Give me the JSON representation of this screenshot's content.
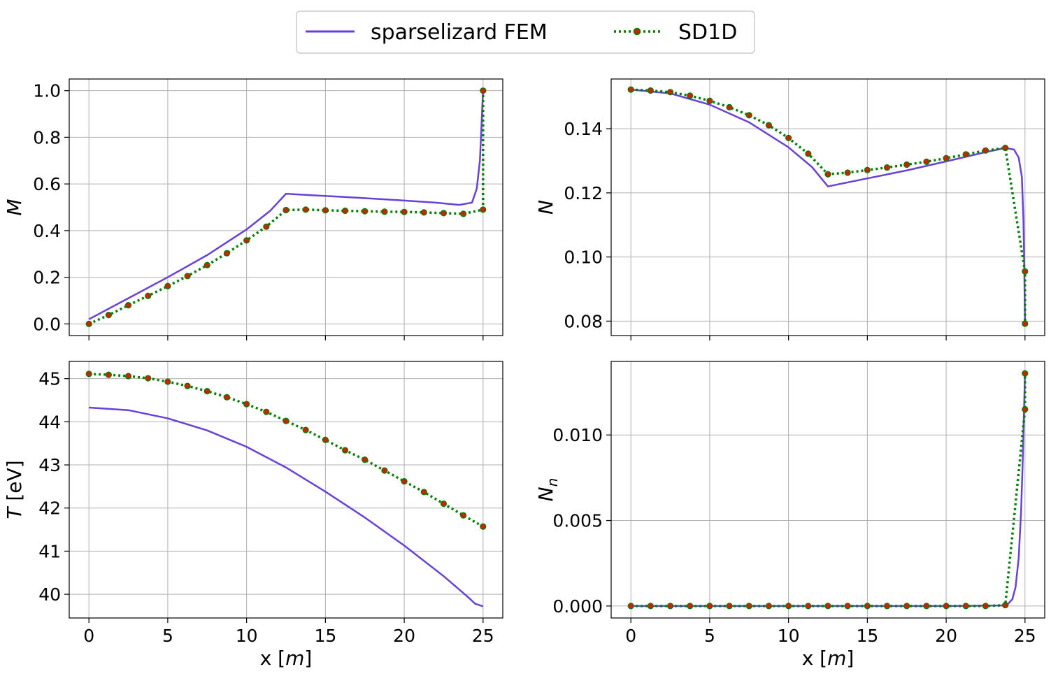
{
  "legend": {
    "entries": [
      {
        "label": "sparselizard FEM",
        "color": "#6741d9",
        "style": "solid"
      },
      {
        "label": "SD1D",
        "color": "#008000",
        "marker_color": "#cc2200",
        "style": "dotted-markers"
      }
    ],
    "placement": "top-center"
  },
  "chart_data": [
    {
      "type": "line",
      "ylabel": "M",
      "xlabel": "",
      "xlim": [
        -1.25,
        26.25
      ],
      "ylim": [
        -0.05,
        1.05
      ],
      "xticks": [
        0,
        5,
        10,
        15,
        20,
        25
      ],
      "yticks": [
        0.0,
        0.2,
        0.4,
        0.6,
        0.8,
        1.0
      ],
      "ytick_labels": [
        "0.0",
        "0.2",
        "0.4",
        "0.6",
        "0.8",
        "1.0"
      ],
      "show_xtick_labels": false,
      "grid": true,
      "series": [
        {
          "name": "sparselizard FEM",
          "x": [
            0,
            2.5,
            5,
            7.5,
            10,
            11.5,
            12.5,
            14,
            16,
            18,
            20,
            22,
            23.5,
            24.3,
            24.6,
            24.8,
            24.9,
            24.95,
            25
          ],
          "y": [
            0.02,
            0.11,
            0.2,
            0.295,
            0.405,
            0.485,
            0.558,
            0.552,
            0.545,
            0.537,
            0.529,
            0.52,
            0.51,
            0.52,
            0.58,
            0.7,
            0.85,
            0.93,
            1.0
          ]
        },
        {
          "name": "SD1D",
          "x": [
            0,
            1.25,
            2.5,
            3.75,
            5,
            6.25,
            7.5,
            8.75,
            10,
            11.25,
            12.5,
            13.75,
            15,
            16.25,
            17.5,
            18.75,
            20,
            21.25,
            22.5,
            23.75,
            25,
            25
          ],
          "y": [
            0.0,
            0.038,
            0.08,
            0.12,
            0.162,
            0.205,
            0.252,
            0.303,
            0.358,
            0.417,
            0.488,
            0.49,
            0.487,
            0.485,
            0.483,
            0.481,
            0.48,
            0.478,
            0.475,
            0.472,
            0.49,
            1.0
          ]
        }
      ]
    },
    {
      "type": "line",
      "ylabel": "N",
      "xlabel": "",
      "xlim": [
        -1.25,
        26.25
      ],
      "ylim": [
        0.0755,
        0.1555
      ],
      "xticks": [
        0,
        5,
        10,
        15,
        20,
        25
      ],
      "yticks": [
        0.08,
        0.1,
        0.12,
        0.14
      ],
      "ytick_labels": [
        "0.08",
        "0.10",
        "0.12",
        "0.14"
      ],
      "show_xtick_labels": false,
      "grid": true,
      "series": [
        {
          "name": "sparselizard FEM",
          "x": [
            0,
            2.5,
            5,
            7.5,
            10,
            11.5,
            12.5,
            15,
            17.5,
            20,
            22.5,
            23.75,
            24.3,
            24.6,
            24.8,
            24.9,
            24.95,
            25
          ],
          "y": [
            0.1522,
            0.151,
            0.1475,
            0.142,
            0.1342,
            0.128,
            0.122,
            0.1245,
            0.127,
            0.1298,
            0.1327,
            0.134,
            0.1335,
            0.131,
            0.125,
            0.112,
            0.098,
            0.0795
          ]
        },
        {
          "name": "SD1D",
          "x": [
            0,
            1.25,
            2.5,
            3.75,
            5,
            6.25,
            7.5,
            8.75,
            10,
            11.25,
            12.5,
            13.75,
            15,
            16.25,
            17.5,
            18.75,
            20,
            21.25,
            22.5,
            23.75,
            25,
            25
          ],
          "y": [
            0.1522,
            0.1519,
            0.1514,
            0.1503,
            0.1487,
            0.1467,
            0.1442,
            0.1411,
            0.1371,
            0.1322,
            0.1258,
            0.1263,
            0.1271,
            0.1279,
            0.1288,
            0.1297,
            0.1308,
            0.132,
            0.1332,
            0.134,
            0.0955,
            0.0792
          ]
        }
      ]
    },
    {
      "type": "line",
      "ylabel": "T [eV]",
      "xlabel": "x [m]",
      "xlim": [
        -1.25,
        26.25
      ],
      "ylim": [
        39.45,
        45.4
      ],
      "xticks": [
        0,
        5,
        10,
        15,
        20,
        25
      ],
      "xtick_labels": [
        "0",
        "5",
        "10",
        "15",
        "20",
        "25"
      ],
      "yticks": [
        40,
        41,
        42,
        43,
        44,
        45
      ],
      "ytick_labels": [
        "40",
        "41",
        "42",
        "43",
        "44",
        "45"
      ],
      "show_xtick_labels": true,
      "grid": true,
      "series": [
        {
          "name": "sparselizard FEM",
          "x": [
            0,
            2.5,
            5,
            7.5,
            10,
            12.5,
            15,
            17.5,
            20,
            22.5,
            24,
            24.5,
            25
          ],
          "y": [
            44.33,
            44.27,
            44.08,
            43.8,
            43.42,
            42.94,
            42.38,
            41.78,
            41.13,
            40.42,
            39.95,
            39.78,
            39.72
          ]
        },
        {
          "name": "SD1D",
          "x": [
            0,
            1.25,
            2.5,
            3.75,
            5,
            6.25,
            7.5,
            8.75,
            10,
            11.25,
            12.5,
            13.75,
            15,
            16.25,
            17.5,
            18.75,
            20,
            21.25,
            22.5,
            23.75,
            25
          ],
          "y": [
            45.11,
            45.09,
            45.06,
            45.01,
            44.93,
            44.83,
            44.71,
            44.57,
            44.41,
            44.23,
            44.02,
            43.81,
            43.58,
            43.34,
            43.12,
            42.87,
            42.62,
            42.37,
            42.1,
            41.83,
            41.57
          ]
        }
      ]
    },
    {
      "type": "line",
      "ylabel": "N_n",
      "xlabel": "x [m]",
      "xlim": [
        -1.25,
        26.25
      ],
      "ylim": [
        -0.0007,
        0.0143
      ],
      "xticks": [
        0,
        5,
        10,
        15,
        20,
        25
      ],
      "xtick_labels": [
        "0",
        "5",
        "10",
        "15",
        "20",
        "25"
      ],
      "yticks": [
        0.0,
        0.005,
        0.01
      ],
      "ytick_labels": [
        "0.000",
        "0.005",
        "0.010"
      ],
      "show_xtick_labels": true,
      "grid": true,
      "series": [
        {
          "name": "sparselizard FEM",
          "x": [
            0,
            5,
            10,
            15,
            20,
            23.5,
            23.9,
            24.2,
            24.4,
            24.6,
            24.75,
            24.85,
            24.92,
            25
          ],
          "y": [
            0,
            0,
            0,
            0,
            0,
            3e-05,
            0.0001,
            0.0004,
            0.0011,
            0.0028,
            0.0055,
            0.0083,
            0.0108,
            0.0136
          ]
        },
        {
          "name": "SD1D",
          "x": [
            0,
            1.25,
            2.5,
            3.75,
            5,
            6.25,
            7.5,
            8.75,
            10,
            11.25,
            12.5,
            13.75,
            15,
            16.25,
            17.5,
            18.75,
            20,
            21.25,
            22.5,
            23.75,
            25,
            25
          ],
          "y": [
            0,
            0,
            0,
            0,
            0,
            0,
            0,
            0,
            0,
            0,
            0,
            0,
            0,
            0,
            0,
            0,
            0,
            0,
            0,
            5e-05,
            0.0115,
            0.0136
          ]
        }
      ]
    }
  ]
}
